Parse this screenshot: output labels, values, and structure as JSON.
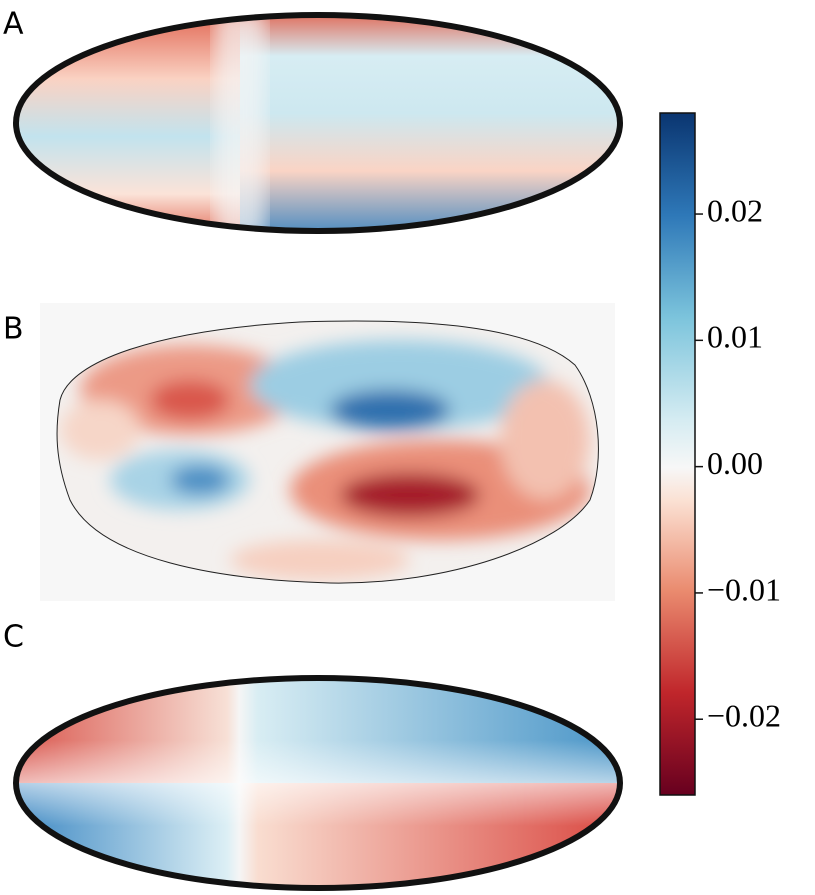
{
  "panels": [
    {
      "label": "A"
    },
    {
      "label": "B"
    },
    {
      "label": "C"
    }
  ],
  "chart_data": {
    "type": "colorbar",
    "ylim": [
      -0.026,
      0.028
    ],
    "yticks": [
      {
        "value": -0.02,
        "label": "−0.02"
      },
      {
        "value": -0.01,
        "label": "−0.01"
      },
      {
        "value": 0,
        "label": "0.00"
      },
      0.01,
      0.02
    ]
  }
}
